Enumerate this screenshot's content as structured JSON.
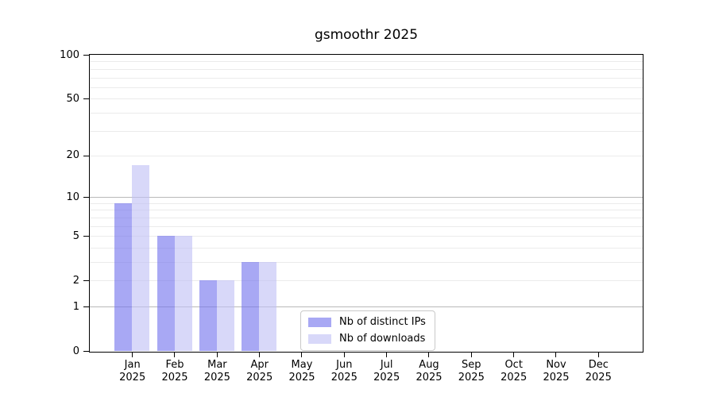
{
  "chart_data": {
    "type": "bar",
    "title": "gsmoothr 2025",
    "year": "2025",
    "categories": [
      "Jan",
      "Feb",
      "Mar",
      "Apr",
      "May",
      "Jun",
      "Jul",
      "Aug",
      "Sep",
      "Oct",
      "Nov",
      "Dec"
    ],
    "series": [
      {
        "name": "Nb of distinct IPs",
        "color": "#7272ee",
        "values": [
          9,
          5,
          2,
          3,
          0,
          0,
          0,
          0,
          0,
          0,
          0,
          0
        ]
      },
      {
        "name": "Nb of downloads",
        "color": "#c0c0f6",
        "values": [
          17,
          5,
          2,
          3,
          0,
          0,
          0,
          0,
          0,
          0,
          0,
          0
        ]
      }
    ],
    "xlabel": "",
    "ylabel": "",
    "yscale": "log1p",
    "ylim": [
      0,
      100
    ],
    "y_ticks": [
      0,
      1,
      2,
      5,
      10,
      20,
      50,
      100
    ],
    "major_gridlines": [
      1,
      10
    ],
    "minor_gridlines": [
      2,
      3,
      4,
      5,
      6,
      7,
      8,
      9,
      20,
      30,
      40,
      50,
      60,
      70,
      80,
      90
    ],
    "grid": true,
    "legend_position": "bottom-center-inside",
    "colors": {
      "frame": "#000000",
      "major_grid": "#b9b9b9",
      "minor_grid": "#ebebeb",
      "background": "#ffffff"
    }
  }
}
